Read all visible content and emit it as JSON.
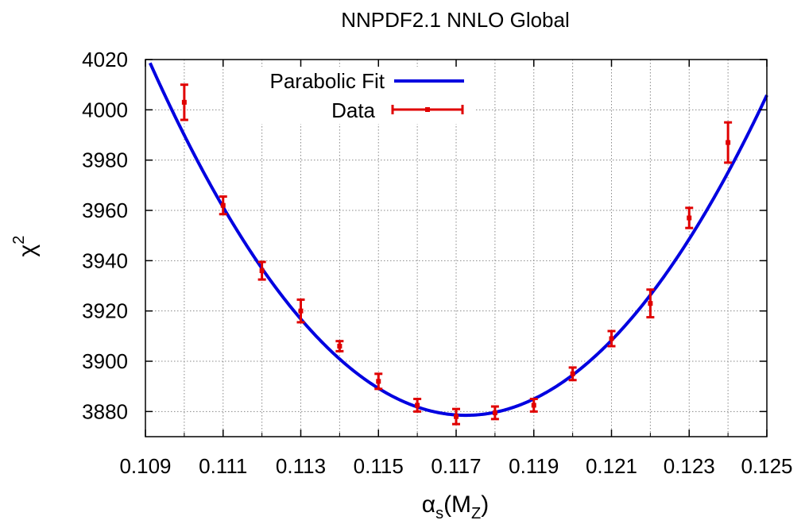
{
  "chart_data": {
    "type": "scatter",
    "title": "NNPDF2.1 NNLO Global",
    "xlabel": "αs(MZ)",
    "xlabel_parts": {
      "symbol": "α",
      "sub": "s",
      "paren_open": "(M",
      "sub2": "Z",
      "paren_close": ")"
    },
    "ylabel": "χ2",
    "ylabel_parts": {
      "symbol": "χ",
      "sup": "2"
    },
    "xlim": [
      0.109,
      0.125
    ],
    "ylim": [
      3870,
      4020
    ],
    "xticks": [
      "0.109",
      "0.111",
      "0.113",
      "0.115",
      "0.117",
      "0.119",
      "0.121",
      "0.123",
      "0.125"
    ],
    "yticks": [
      "3880",
      "3900",
      "3920",
      "3940",
      "3960",
      "3980",
      "4000",
      "4020"
    ],
    "xgrid": [
      0.109,
      0.11,
      0.111,
      0.112,
      0.113,
      0.114,
      0.115,
      0.116,
      0.117,
      0.118,
      0.119,
      0.12,
      0.121,
      0.122,
      0.123,
      0.124,
      0.125
    ],
    "grid": true,
    "legend_position": "top-left",
    "series": [
      {
        "name": "Parabolic Fit",
        "kind": "line",
        "color": "#0000e0",
        "vertex": [
          0.11725,
          3878.5
        ],
        "curvature": 2120000.0
      },
      {
        "name": "Data",
        "kind": "errorbar",
        "color": "#e00000",
        "points": [
          {
            "x": 0.11,
            "y": 4003,
            "err": 7
          },
          {
            "x": 0.111,
            "y": 3962,
            "err": 3.5
          },
          {
            "x": 0.112,
            "y": 3936,
            "err": 3.5
          },
          {
            "x": 0.113,
            "y": 3920,
            "err": 4.5
          },
          {
            "x": 0.114,
            "y": 3906,
            "err": 2
          },
          {
            "x": 0.115,
            "y": 3892,
            "err": 3
          },
          {
            "x": 0.116,
            "y": 3882.5,
            "err": 2.5
          },
          {
            "x": 0.117,
            "y": 3878,
            "err": 3
          },
          {
            "x": 0.118,
            "y": 3879.5,
            "err": 2.5
          },
          {
            "x": 0.119,
            "y": 3882.5,
            "err": 2.5
          },
          {
            "x": 0.12,
            "y": 3895,
            "err": 2.5
          },
          {
            "x": 0.121,
            "y": 3909,
            "err": 3
          },
          {
            "x": 0.122,
            "y": 3923,
            "err": 5.5
          },
          {
            "x": 0.123,
            "y": 3957,
            "err": 4
          },
          {
            "x": 0.124,
            "y": 3987,
            "err": 8
          }
        ]
      }
    ]
  }
}
